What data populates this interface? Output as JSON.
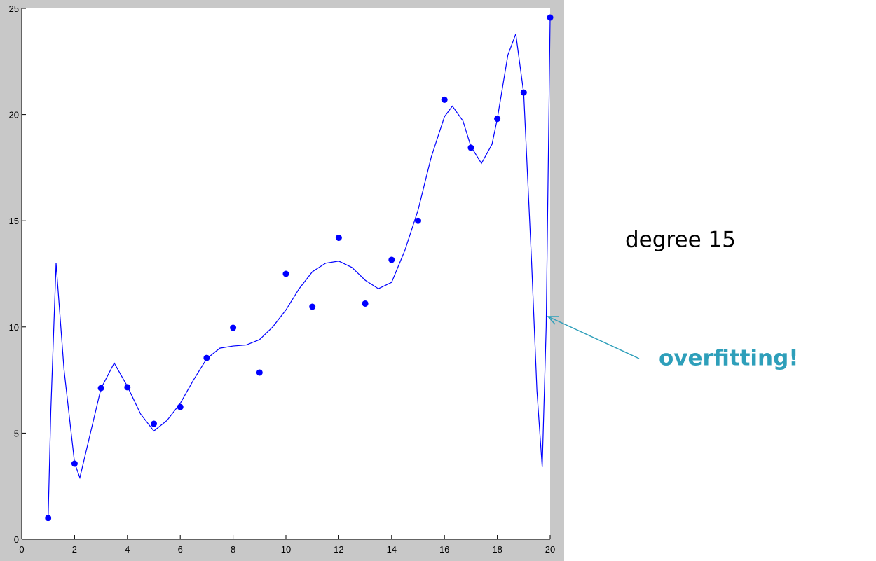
{
  "chart_data": {
    "type": "scatter",
    "x": [
      1,
      2,
      3,
      4,
      5,
      6,
      7,
      8,
      9,
      10,
      11,
      12,
      13,
      14,
      15,
      16,
      17,
      18,
      19,
      20
    ],
    "values": [
      1.0,
      3.56,
      7.12,
      7.16,
      5.44,
      6.23,
      8.54,
      9.96,
      7.85,
      12.5,
      10.95,
      14.2,
      11.1,
      13.16,
      15.0,
      20.7,
      18.44,
      19.8,
      21.04,
      24.57
    ],
    "color": "#0000ff",
    "fit_line": {
      "color": "#0000ff",
      "x": [
        1,
        1.1,
        1.3,
        1.6,
        2.0,
        2.2,
        2.6,
        3.0,
        3.5,
        4.0,
        4.5,
        5.0,
        5.5,
        6.0,
        6.5,
        7.0,
        7.5,
        8.0,
        8.5,
        9.0,
        9.5,
        10.0,
        10.5,
        11.0,
        11.5,
        12.0,
        12.5,
        13.0,
        13.5,
        14.0,
        14.5,
        15.0,
        15.5,
        16.0,
        16.3,
        16.7,
        17.0,
        17.4,
        17.8,
        18.0,
        18.4,
        18.7,
        19.0,
        19.3,
        19.5,
        19.7,
        19.85,
        20
      ],
      "values": [
        1.0,
        6,
        13.0,
        8,
        3.6,
        2.9,
        5,
        7.1,
        8.3,
        7.2,
        5.9,
        5.1,
        5.6,
        6.4,
        7.5,
        8.5,
        9.0,
        9.1,
        9.15,
        9.4,
        10.0,
        10.8,
        11.8,
        12.6,
        13.0,
        13.1,
        12.8,
        12.2,
        11.8,
        12.1,
        13.6,
        15.5,
        18.0,
        19.9,
        20.4,
        19.7,
        18.5,
        17.7,
        18.6,
        19.8,
        22.8,
        23.8,
        21.0,
        13,
        7,
        3.4,
        10,
        24.57
      ]
    },
    "xlim": [
      0,
      20
    ],
    "xticks": [
      0,
      2,
      4,
      6,
      8,
      10,
      12,
      14,
      16,
      18,
      20
    ],
    "ylim": [
      0,
      25
    ],
    "yticks": [
      0,
      5,
      10,
      15,
      20,
      25
    ],
    "annotations": [
      "degree 15",
      "overfitting!"
    ]
  }
}
